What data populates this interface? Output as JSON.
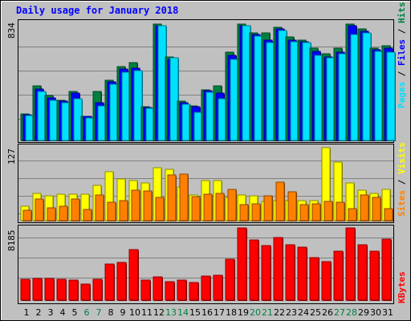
{
  "chart_data": {
    "type": "bar",
    "title": "Daily usage for January 2018",
    "categories": [
      "1",
      "2",
      "3",
      "4",
      "5",
      "6",
      "7",
      "8",
      "9",
      "10",
      "11",
      "12",
      "13",
      "14",
      "15",
      "16",
      "17",
      "18",
      "19",
      "20",
      "21",
      "22",
      "23",
      "24",
      "25",
      "26",
      "27",
      "28",
      "29",
      "30",
      "31"
    ],
    "weekend_days": [
      "6",
      "7",
      "13",
      "14",
      "20",
      "21",
      "27",
      "28"
    ],
    "panels": [
      {
        "name": "hits-files-pages",
        "scale_label": "834",
        "ymax": 834,
        "grid": true,
        "series": [
          {
            "name": "Hits",
            "color": "#008040",
            "values": [
              190,
              390,
              320,
              290,
              350,
              175,
              350,
              430,
              530,
              560,
              240,
              834,
              600,
              280,
              250,
              360,
              390,
              630,
              834,
              770,
              770,
              810,
              740,
              720,
              660,
              620,
              660,
              834,
              800,
              660,
              680
            ]
          },
          {
            "name": "Files",
            "color": "#0000ff",
            "values": [
              185,
              370,
              305,
              280,
              340,
              170,
              270,
              420,
              510,
              520,
              235,
              820,
              580,
              270,
              240,
              355,
              340,
              610,
              820,
              760,
              720,
              800,
              720,
              710,
              640,
              600,
              630,
              820,
              780,
              650,
              660
            ]
          },
          {
            "name": "Pages",
            "color": "#00e0ff",
            "values": [
              180,
              350,
              290,
              270,
              300,
              160,
              250,
              400,
              490,
              500,
              230,
              820,
              590,
              260,
              200,
              345,
              300,
              580,
              820,
              750,
              700,
              790,
              710,
              700,
              610,
              590,
              620,
              760,
              770,
              640,
              630
            ]
          }
        ]
      },
      {
        "name": "visits-sites",
        "scale_label": "127",
        "ymax": 127,
        "grid": true,
        "series": [
          {
            "name": "Visits",
            "color": "#ffff00",
            "values": [
              25,
              48,
              43,
              46,
              46,
              46,
              62,
              85,
              72,
              70,
              65,
              92,
              90,
              58,
              45,
              70,
              70,
              40,
              44,
              43,
              33,
              35,
              35,
              35,
              35,
              127,
              102,
              65,
              53,
              48,
              55
            ]
          },
          {
            "name": "Sites",
            "color": "#ff8000",
            "values": [
              18,
              38,
              22,
              25,
              38,
              20,
              45,
              32,
              35,
              53,
              51,
              40,
              79,
              81,
              42,
              46,
              48,
              55,
              28,
              30,
              43,
              67,
              50,
              28,
              29,
              33,
              32,
              21,
              45,
              40,
              21
            ]
          }
        ]
      },
      {
        "name": "kbytes",
        "scale_label": "8185",
        "ymax": 8185,
        "grid": true,
        "series": [
          {
            "name": "KBytes",
            "color": "#ff0000",
            "values": [
              2400,
              2500,
              2420,
              2380,
              2280,
              1780,
              2380,
              4100,
              4300,
              5700,
              2300,
              2600,
              2050,
              2280,
              1980,
              2760,
              2800,
              4600,
              8185,
              6800,
              6200,
              7100,
              6300,
              5980,
              4800,
              4400,
              5580,
              8185,
              6300,
              5580,
              6880
            ]
          }
        ]
      }
    ]
  }
}
